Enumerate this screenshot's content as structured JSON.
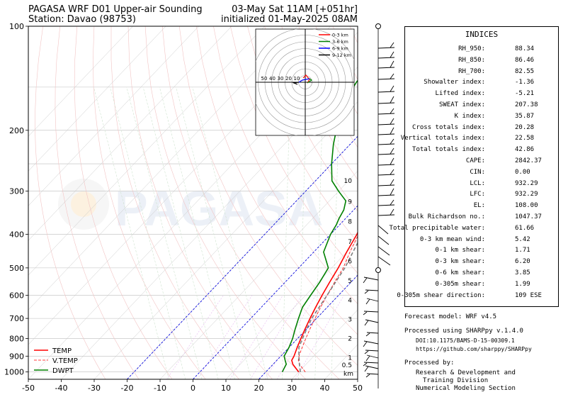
{
  "header": {
    "title_left": "PAGASA WRF D01 Upper-air Sounding",
    "station": "Station: Davao (98753)",
    "valid_time": "03-May Sat 11AM [+051hr]",
    "init_time": "initialized 01-May-2025 08AM"
  },
  "watermark": "PAGASA",
  "chart_data": {
    "type": "line",
    "title": "PAGASA WRF D01 Upper-air Sounding",
    "yscale": "log",
    "ylim": [
      1050,
      100
    ],
    "xlim": [
      -50,
      50
    ],
    "x_ticks": [
      "-50",
      "-40",
      "-30",
      "-20",
      "-10",
      "0",
      "10",
      "20",
      "30",
      "40",
      "50"
    ],
    "y_ticks": [
      "100",
      "200",
      "300",
      "400",
      "500",
      "600",
      "700",
      "800",
      "900",
      "1000"
    ],
    "series": [
      {
        "name": "TEMP",
        "color": "#ff0000",
        "points": [
          [
            30,
            1000
          ],
          [
            28,
            975
          ],
          [
            26,
            950
          ],
          [
            24.5,
            925
          ],
          [
            24,
            900
          ],
          [
            22.5,
            850
          ],
          [
            21,
            800
          ],
          [
            19.5,
            750
          ],
          [
            18,
            700
          ],
          [
            16.5,
            650
          ],
          [
            15,
            600
          ],
          [
            13.5,
            550
          ],
          [
            12,
            500
          ],
          [
            10,
            450
          ],
          [
            8,
            400
          ],
          [
            5,
            350
          ],
          [
            4,
            330
          ],
          [
            2,
            310
          ],
          [
            0,
            290
          ],
          [
            -4,
            260
          ],
          [
            -8,
            240
          ],
          [
            -12,
            220
          ],
          [
            -17,
            200
          ],
          [
            -22,
            180
          ],
          [
            -27,
            160
          ],
          [
            -32,
            145
          ],
          [
            -35,
            135
          ],
          [
            -37,
            125
          ],
          [
            -39,
            115
          ],
          [
            -41,
            108
          ],
          [
            -40,
            105
          ],
          [
            -39,
            100
          ]
        ]
      },
      {
        "name": "V.TEMP",
        "color": "#ff0000",
        "points": [
          [
            32,
            1000
          ],
          [
            30,
            975
          ],
          [
            28,
            950
          ],
          [
            26.5,
            925
          ],
          [
            25.5,
            900
          ],
          [
            24,
            850
          ],
          [
            22.5,
            800
          ],
          [
            21,
            750
          ],
          [
            19.5,
            700
          ],
          [
            18,
            650
          ],
          [
            16.5,
            600
          ],
          [
            15,
            550
          ],
          [
            13.5,
            500
          ],
          [
            11,
            450
          ],
          [
            8.5,
            400
          ],
          [
            5.5,
            350
          ]
        ]
      },
      {
        "name": "DWPT",
        "color": "#008000",
        "points": [
          [
            25,
            1000
          ],
          [
            24.5,
            975
          ],
          [
            24,
            950
          ],
          [
            22.5,
            925
          ],
          [
            21,
            900
          ],
          [
            20,
            850
          ],
          [
            18.5,
            800
          ],
          [
            16.5,
            750
          ],
          [
            14.5,
            700
          ],
          [
            12.5,
            650
          ],
          [
            11.5,
            600
          ],
          [
            10.5,
            550
          ],
          [
            9,
            500
          ],
          [
            3,
            450
          ],
          [
            0,
            400
          ],
          [
            -1,
            375
          ],
          [
            -2,
            360
          ],
          [
            -3,
            340
          ],
          [
            -5,
            320
          ],
          [
            -10,
            300
          ],
          [
            -15,
            280
          ],
          [
            -20,
            250
          ],
          [
            -25,
            220
          ],
          [
            -30,
            190
          ],
          [
            -33,
            170
          ],
          [
            -35,
            155
          ],
          [
            -36,
            145
          ],
          [
            -36.5,
            135
          ],
          [
            -37,
            125
          ],
          [
            -39,
            115
          ],
          [
            -41,
            108
          ],
          [
            -41,
            104
          ],
          [
            -40,
            100
          ]
        ]
      },
      {
        "name": "parcel",
        "color": "#808080",
        "points": [
          [
            30.5,
            1000
          ],
          [
            28,
            950
          ],
          [
            25.5,
            900
          ],
          [
            23,
            850
          ],
          [
            21.5,
            800
          ],
          [
            20,
            750
          ],
          [
            18.5,
            700
          ],
          [
            16.5,
            600
          ],
          [
            14,
            500
          ],
          [
            11,
            430
          ],
          [
            8,
            370
          ],
          [
            4,
            320
          ],
          [
            0,
            280
          ],
          [
            -5,
            250
          ],
          [
            -11,
            220
          ],
          [
            -17,
            195
          ],
          [
            -23,
            170
          ],
          [
            -30,
            145
          ],
          [
            -37,
            120
          ],
          [
            -43,
            100
          ]
        ]
      }
    ],
    "legend": {
      "entries": [
        "TEMP",
        "V.TEMP",
        "DWPT"
      ],
      "placement": "lower-left"
    },
    "height_axis": {
      "unit": "km",
      "levels": [
        {
          "label": "0.5",
          "p": 955
        },
        {
          "label": "1",
          "p": 910
        },
        {
          "label": "2",
          "p": 800
        },
        {
          "label": "3",
          "p": 705
        },
        {
          "label": "4",
          "p": 620
        },
        {
          "label": "5",
          "p": 545
        },
        {
          "label": "6",
          "p": 478
        },
        {
          "label": "7",
          "p": 420
        },
        {
          "label": "8",
          "p": 367
        },
        {
          "label": "9",
          "p": 322
        },
        {
          "label": "10",
          "p": 280
        }
      ]
    },
    "hodograph": {
      "legend": [
        "0-3 km",
        "3-6 km",
        "6-9 km",
        "9-12 km"
      ],
      "legend_colors": [
        "#ff0000",
        "#008000",
        "#0000ff",
        "#000000"
      ],
      "ring_labels": [
        "50",
        "40",
        "30",
        "20",
        "10"
      ]
    }
  },
  "indices": {
    "title": "INDICES",
    "rows": [
      {
        "label": "RH_950:",
        "value": "88.34"
      },
      {
        "label": "RH_850:",
        "value": "86.46"
      },
      {
        "label": "RH_700:",
        "value": "82.55"
      },
      {
        "label": "Showalter index:",
        "value": "-1.36"
      },
      {
        "label": "Lifted index:",
        "value": "-5.21"
      },
      {
        "label": "SWEAT index:",
        "value": "207.38"
      },
      {
        "label": "K index:",
        "value": "35.87"
      },
      {
        "label": "Cross totals index:",
        "value": "20.28"
      },
      {
        "label": "Vertical totals index:",
        "value": "22.58"
      },
      {
        "label": "Total totals index:",
        "value": "42.86"
      },
      {
        "label": "CAPE:",
        "value": "2842.37"
      },
      {
        "label": "CIN:",
        "value": "0.00"
      },
      {
        "label": "LCL:",
        "value": "932.29"
      },
      {
        "label": "LFC:",
        "value": "932.29"
      },
      {
        "label": "EL:",
        "value": "108.00"
      },
      {
        "label": "Bulk Richardson no.:",
        "value": "1047.37"
      },
      {
        "label": "Total precipitable water:",
        "value": "61.66"
      },
      {
        "label": "0-3 km mean wind:",
        "value": "5.42"
      },
      {
        "label": "0-1 km shear:",
        "value": "1.71"
      },
      {
        "label": "0-3 km shear:",
        "value": "6.20"
      },
      {
        "label": "0-6 km shear:",
        "value": "3.85"
      },
      {
        "label": "0-305m shear:",
        "value": "1.99"
      },
      {
        "label": "0-305m shear direction:",
        "value": "109 ESE"
      }
    ]
  },
  "info": {
    "model": "Forecast model: WRF v4.5",
    "processed_using": "Processed using SHARPpy v.1.4.0",
    "doi": "DOI:10.1175/BAMS-D-15-00309.1",
    "url": "https://github.com/sharppy/SHARPpy",
    "processed_by": "Processed by:",
    "division_line1": "Research & Development and",
    "division_line2": "Training Division",
    "section": "Numerical Modeling Section"
  }
}
